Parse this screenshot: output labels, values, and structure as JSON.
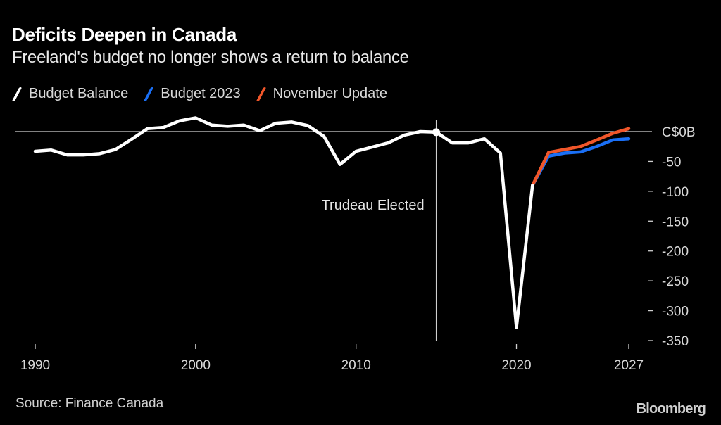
{
  "header": {
    "title": "Deficits Deepen in Canada",
    "subtitle": "Freeland's budget no longer shows a return to balance"
  },
  "legend": [
    {
      "label": "Budget Balance",
      "color": "#ffffff"
    },
    {
      "label": "Budget 2023",
      "color": "#1a6ff5"
    },
    {
      "label": "November Update",
      "color": "#f0562a"
    }
  ],
  "footer": {
    "source": "Source: Finance Canada",
    "brand": "Bloomberg"
  },
  "chart_data": {
    "type": "line",
    "title": "Deficits Deepen in Canada",
    "subtitle": "Freeland's budget no longer shows a return to balance",
    "xlabel": "",
    "ylabel": "",
    "xlim": [
      1990,
      2027
    ],
    "ylim": [
      -350,
      0
    ],
    "x_ticks": [
      1990,
      2000,
      2010,
      2020,
      2027
    ],
    "y_ticks": [
      0,
      -50,
      -100,
      -150,
      -200,
      -250,
      -300,
      -350
    ],
    "y_tick_labels": [
      "C$0B",
      "-50",
      "-100",
      "-150",
      "-200",
      "-250",
      "-300",
      "-350"
    ],
    "y_axis_position": "right",
    "grid": false,
    "legend_position": "top-left",
    "annotations": [
      {
        "x": 2015,
        "label": "Trudeau Elected",
        "type": "vertical-line"
      }
    ],
    "series": [
      {
        "name": "Budget Balance",
        "color": "#ffffff",
        "x": [
          1990,
          1991,
          1992,
          1993,
          1994,
          1995,
          1996,
          1997,
          1998,
          1999,
          2000,
          2001,
          2002,
          2003,
          2004,
          2005,
          2006,
          2007,
          2008,
          2009,
          2010,
          2011,
          2012,
          2013,
          2014,
          2015,
          2016,
          2017,
          2018,
          2019,
          2020,
          2021
        ],
        "values": [
          -33,
          -31,
          -39,
          -39,
          -37,
          -30,
          -13,
          5,
          7,
          18,
          23,
          11,
          9,
          11,
          1.5,
          14,
          16,
          10,
          -8,
          -55,
          -33,
          -26,
          -19,
          -6,
          0,
          -1,
          -19,
          -19,
          -12,
          -36,
          -328,
          -90
        ]
      },
      {
        "name": "Budget 2023",
        "color": "#1a6ff5",
        "x": [
          2021,
          2022,
          2023,
          2024,
          2025,
          2026,
          2027
        ],
        "values": [
          -90,
          -41,
          -36,
          -34,
          -25,
          -14,
          -12
        ]
      },
      {
        "name": "November Update",
        "color": "#f0562a",
        "x": [
          2021,
          2022,
          2023,
          2024,
          2025,
          2026,
          2027
        ],
        "values": [
          -90,
          -35,
          -30,
          -25,
          -14,
          -3,
          5
        ]
      }
    ]
  }
}
